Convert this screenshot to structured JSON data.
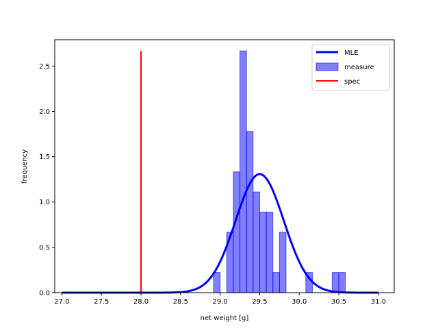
{
  "chart_data": {
    "type": "histogram+line",
    "xlabel": "net weight [g]",
    "ylabel": "frequency",
    "xlim": [
      26.91,
      31.2
    ],
    "ylim": [
      0,
      2.79
    ],
    "xticks": [
      "27.0",
      "27.5",
      "28.0",
      "28.5",
      "29.0",
      "29.5",
      "30.0",
      "30.5",
      "31.0"
    ],
    "yticks": [
      "0.0",
      "0.5",
      "1.0",
      "1.5",
      "2.0",
      "2.5"
    ],
    "legend_position": "top-right",
    "series": [
      {
        "name": "MLE",
        "kind": "line",
        "color": "#0000ff",
        "mean": 29.5,
        "std": 0.305,
        "x_range": [
          27.0,
          31.0
        ]
      },
      {
        "name": "measure",
        "kind": "histogram",
        "color": "#0000ff",
        "opacity": 0.5,
        "bin_width": 0.0833,
        "bins": [
          {
            "x0": 28.917,
            "value": 0.222
          },
          {
            "x0": 29.083,
            "value": 0.667
          },
          {
            "x0": 29.167,
            "value": 1.333
          },
          {
            "x0": 29.25,
            "value": 2.667
          },
          {
            "x0": 29.333,
            "value": 1.778
          },
          {
            "x0": 29.417,
            "value": 1.111
          },
          {
            "x0": 29.5,
            "value": 0.889
          },
          {
            "x0": 29.583,
            "value": 0.889
          },
          {
            "x0": 29.667,
            "value": 0.222
          },
          {
            "x0": 29.75,
            "value": 0.667
          },
          {
            "x0": 30.083,
            "value": 0.222
          },
          {
            "x0": 30.417,
            "value": 0.222
          },
          {
            "x0": 30.5,
            "value": 0.222
          }
        ]
      },
      {
        "name": "spec",
        "kind": "vline",
        "color": "#ff0000",
        "x": 28.0,
        "y_range": [
          0,
          2.667
        ]
      }
    ]
  }
}
